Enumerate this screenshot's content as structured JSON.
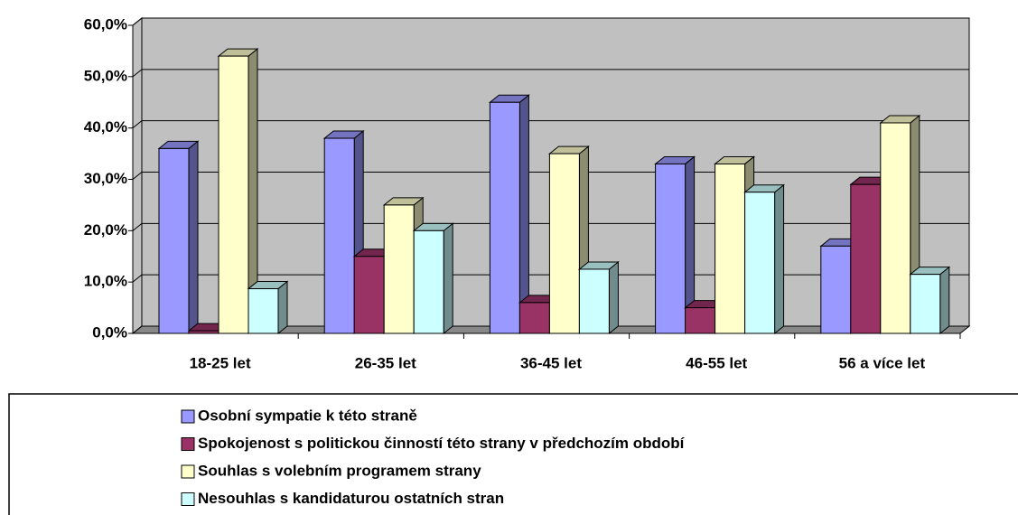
{
  "chart_data": {
    "type": "bar3d",
    "categories": [
      "18-25 let",
      "26-35 let",
      "36-45 let",
      "46-55 let",
      "56 a více let"
    ],
    "series": [
      {
        "name": "Osobní sympatie k této straně",
        "color": "#9999ff",
        "values": [
          36,
          38,
          45,
          33,
          17
        ]
      },
      {
        "name": "Spokojenost s politickou činností této strany v předchozím období",
        "color": "#993366",
        "values": [
          0.5,
          15,
          6,
          5,
          29
        ]
      },
      {
        "name": "Souhlas s volebním programem strany",
        "color": "#ffffcc",
        "values": [
          54,
          25,
          35,
          33,
          41
        ]
      },
      {
        "name": "Nesouhlas s kandidaturou ostatních stran",
        "color": "#ccffff",
        "values": [
          8.7,
          20,
          12.5,
          27.5,
          11.5
        ]
      }
    ],
    "ylim": [
      0,
      60
    ],
    "yticks": [
      {
        "value": 0,
        "label": "0,0%"
      },
      {
        "value": 10,
        "label": "10,0%"
      },
      {
        "value": 20,
        "label": "20,0%"
      },
      {
        "value": 30,
        "label": "30,0%"
      },
      {
        "value": 40,
        "label": "40,0%"
      },
      {
        "value": 50,
        "label": "50,0%"
      },
      {
        "value": 60,
        "label": "60,0%"
      }
    ],
    "grid": true,
    "wall_color": "#c0c0c0",
    "legend": "bottom"
  }
}
